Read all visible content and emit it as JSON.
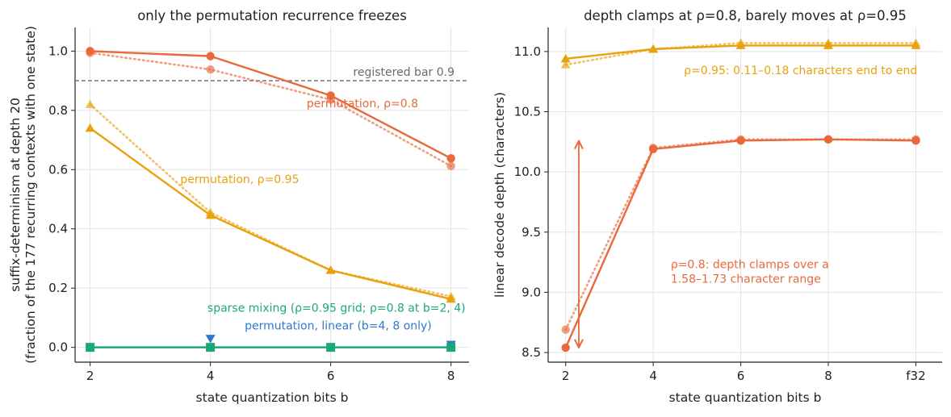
{
  "colors": {
    "rho08": "#e8693c",
    "rho095": "#e8a20c",
    "linear": "#2f78cf",
    "sparse": "#1aa87a",
    "bar": "#6b6b6b",
    "grid": "#e3e3e3"
  },
  "chart_data": [
    {
      "type": "line",
      "title": "only the permutation recurrence freezes",
      "xlabel": "state quantization bits b",
      "ylabel": "suffix-determinism at depth 20",
      "ylabel2": "(fraction of the 177 recurring contexts with one state)",
      "x": [
        2,
        4,
        6,
        8
      ],
      "xticks": [
        "2",
        "4",
        "6",
        "8"
      ],
      "xlim": [
        1.75,
        8.3
      ],
      "ylim": [
        -0.05,
        1.08
      ],
      "yticks": [
        "0.0",
        "0.2",
        "0.4",
        "0.6",
        "0.8",
        "1.0"
      ],
      "grid": true,
      "series": [
        {
          "group": "permutation ρ=0.8",
          "color": "rho08",
          "marker": "circle",
          "style": "solid",
          "values": [
            1.0,
            0.983,
            0.85,
            0.638
          ]
        },
        {
          "group": "permutation ρ=0.8",
          "color": "rho08",
          "marker": "circle",
          "style": "dotted",
          "values": [
            0.994,
            0.938,
            0.836,
            0.612
          ]
        },
        {
          "group": "permutation ρ=0.95",
          "color": "rho095",
          "marker": "triangle",
          "style": "solid",
          "values": [
            0.74,
            0.446,
            0.26,
            0.163
          ]
        },
        {
          "group": "permutation ρ=0.95",
          "color": "rho095",
          "marker": "triangle",
          "style": "dotted",
          "values": [
            0.82,
            0.455,
            0.26,
            0.172
          ]
        },
        {
          "group": "permutation, linear",
          "color": "linear",
          "marker": "triangle-down",
          "style": "points",
          "x": [
            4,
            8
          ],
          "values": [
            0.03,
            0.01
          ]
        },
        {
          "group": "sparse mixing",
          "color": "sparse",
          "marker": "square",
          "style": "solid",
          "values": [
            0.0,
            0.0,
            0.0,
            0.0
          ]
        }
      ],
      "reference_line": {
        "value": 0.9,
        "label": "registered bar 0.9"
      },
      "annotations": [
        {
          "text": "permutation, ρ=0.8",
          "color": "rho08",
          "x": 5.6,
          "y": 0.81
        },
        {
          "text": "permutation, ρ=0.95",
          "color": "rho095",
          "x": 3.5,
          "y": 0.555
        },
        {
          "text": "sparse mixing (ρ=0.95 grid; ρ=0.8 at b=2, 4)",
          "color": "sparse",
          "x": 3.95,
          "y": 0.12
        },
        {
          "text": "permutation, linear (b=4, 8 only)",
          "color": "linear",
          "x": 4.57,
          "y": 0.06
        }
      ]
    },
    {
      "type": "line",
      "title": "depth clamps at ρ=0.8, barely moves at ρ=0.95",
      "xlabel": "state quantization bits b",
      "ylabel": "linear decode depth (characters)",
      "x": [
        2,
        4,
        6,
        8,
        10
      ],
      "xticks": [
        "2",
        "4",
        "6",
        "8",
        "f32"
      ],
      "xlim": [
        1.6,
        10.6
      ],
      "ylim": [
        8.42,
        11.2
      ],
      "yticks": [
        "8.5",
        "9.0",
        "9.5",
        "10.0",
        "10.5",
        "11.0"
      ],
      "grid": true,
      "series": [
        {
          "group": "ρ=0.8",
          "color": "rho08",
          "marker": "circle",
          "style": "solid",
          "values": [
            8.54,
            10.19,
            10.26,
            10.27,
            10.26
          ]
        },
        {
          "group": "ρ=0.8",
          "color": "rho08",
          "marker": "circle",
          "style": "dotted",
          "values": [
            8.69,
            10.2,
            10.27,
            10.27,
            10.27
          ]
        },
        {
          "group": "ρ=0.95",
          "color": "rho095",
          "marker": "triangle",
          "style": "solid",
          "values": [
            10.94,
            11.02,
            11.05,
            11.05,
            11.05
          ]
        },
        {
          "group": "ρ=0.95",
          "color": "rho095",
          "marker": "triangle",
          "style": "dotted",
          "values": [
            10.89,
            11.02,
            11.07,
            11.07,
            11.07
          ]
        }
      ],
      "range_arrow": {
        "x": 2.3,
        "from": 8.55,
        "to": 10.25,
        "color": "rho08"
      },
      "annotations": [
        {
          "text": "ρ=0.95: 0.11–0.18 characters end to end",
          "color": "rho095",
          "x": 4.7,
          "y": 10.81
        },
        {
          "text": "ρ=0.8: depth clamps over a",
          "color": "rho08",
          "x": 4.4,
          "y": 9.2
        },
        {
          "text": "1.58–1.73 character range",
          "color": "rho08",
          "x": 4.4,
          "y": 9.08
        }
      ]
    }
  ]
}
